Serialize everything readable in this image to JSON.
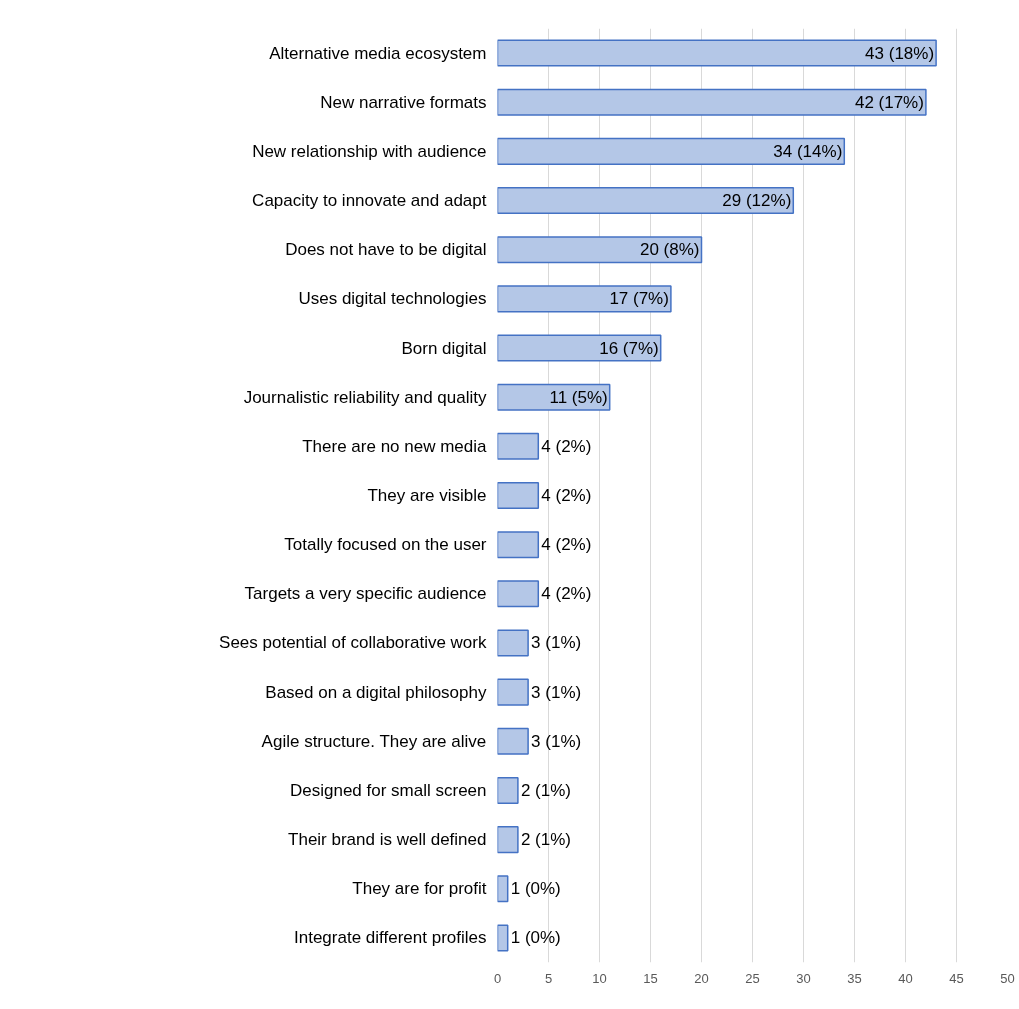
{
  "chart_data": {
    "type": "bar",
    "orientation": "horizontal",
    "categories": [
      "Alternative media ecosystem",
      "New narrative formats",
      "New relationship with audience",
      "Capacity to innovate and adapt",
      "Does not have to be digital",
      "Uses digital technologies",
      "Born digital",
      "Journalistic reliability and quality",
      "There are no new media",
      "They are visible",
      "Totally focused on the user",
      "Targets a very specific audience",
      "Sees potential of collaborative work",
      "Based on a digital philosophy",
      "Agile structure. They are alive",
      "Designed for small screen",
      "Their brand is well defined",
      "They are for profit",
      "Integrate different profiles"
    ],
    "values": [
      43,
      42,
      34,
      29,
      20,
      17,
      16,
      11,
      4,
      4,
      4,
      4,
      3,
      3,
      3,
      2,
      2,
      1,
      1
    ],
    "value_labels": [
      "43 (18%)",
      "42 (17%)",
      "34 (14%)",
      "29 (12%)",
      "20 (8%)",
      "17 (7%)",
      "16 (7%)",
      "11 (5%)",
      "4 (2%)",
      "4 (2%)",
      "4 (2%)",
      "4 (2%)",
      "3 (1%)",
      "3 (1%)",
      "3 (1%)",
      "2 (1%)",
      "2 (1%)",
      "1 (0%)",
      "1 (0%)"
    ],
    "color": "#b4c7e7",
    "xlim": [
      0,
      50
    ],
    "xticks": [
      0,
      5,
      10,
      15,
      20,
      25,
      30,
      35,
      40,
      45,
      50
    ],
    "grid": "x"
  }
}
